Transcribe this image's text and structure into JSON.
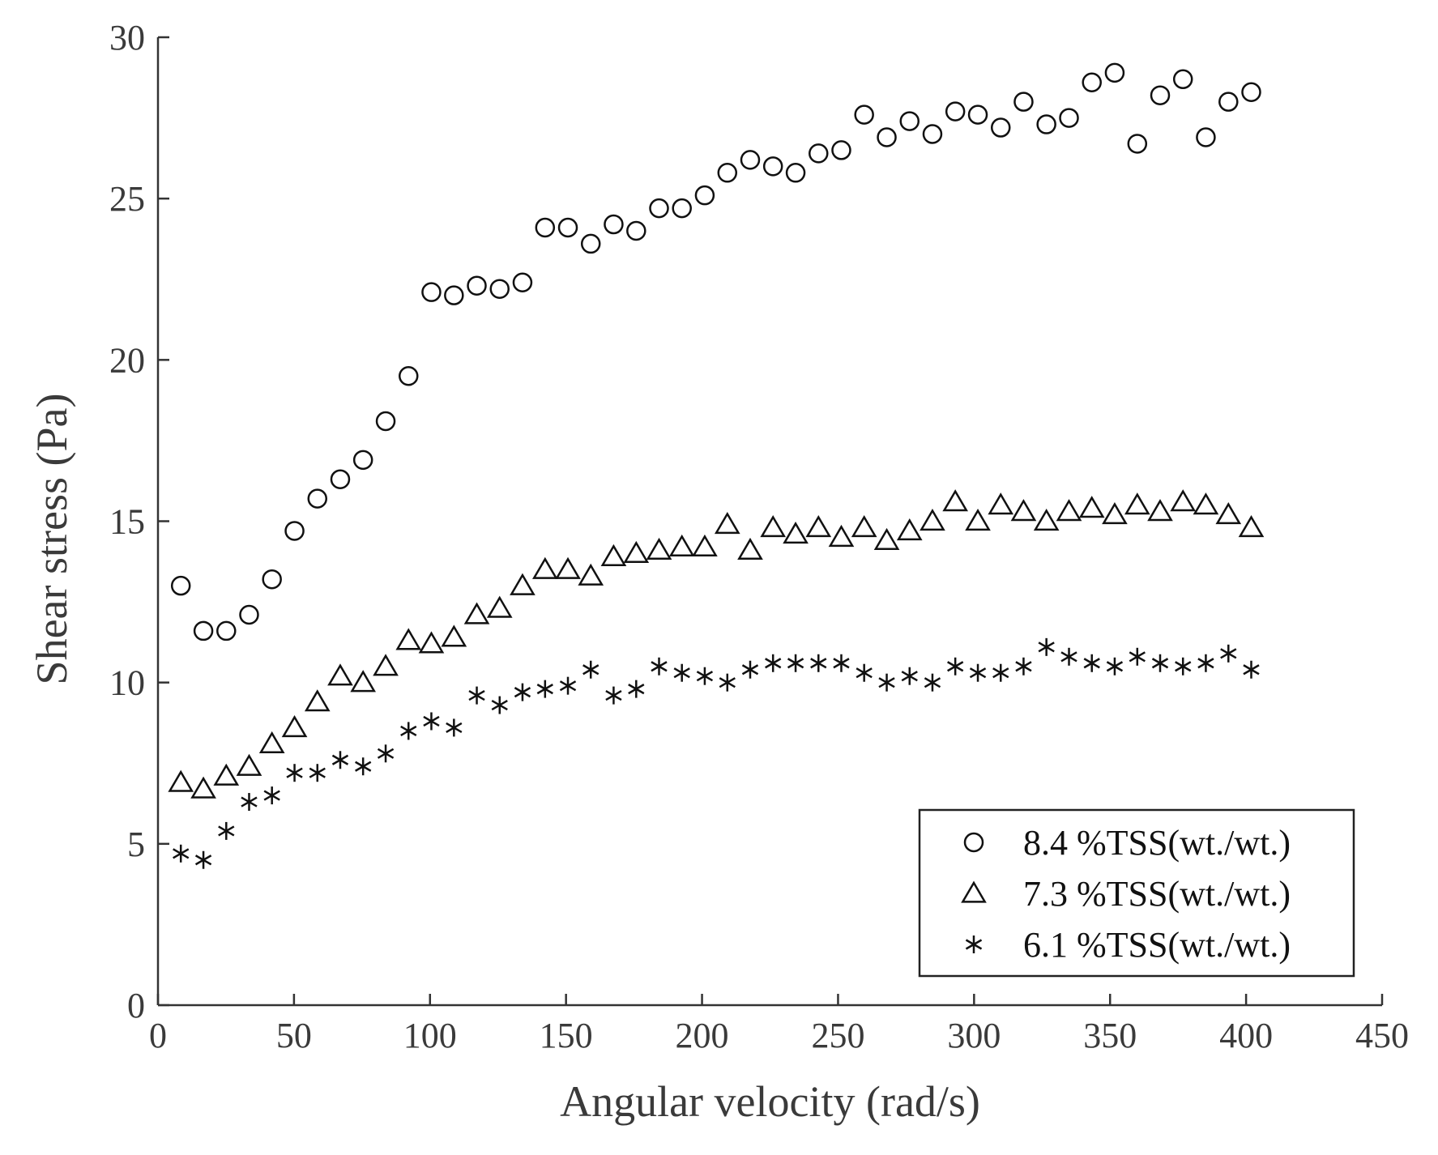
{
  "chart_data": {
    "type": "scatter",
    "title": "",
    "xlabel": "Angular velocity (rad/s)",
    "ylabel": "Shear stress (Pa)",
    "xlim": [
      0,
      450
    ],
    "ylim": [
      0,
      30
    ],
    "xticks": [
      0,
      50,
      100,
      150,
      200,
      250,
      300,
      350,
      400,
      450
    ],
    "yticks": [
      0,
      5,
      10,
      15,
      20,
      25,
      30
    ],
    "grid": false,
    "legend_position": "bottom-right",
    "series": [
      {
        "name": "8.4 %TSS(wt./wt.)",
        "marker": "circle",
        "x": [
          8.4,
          16.7,
          25.1,
          33.5,
          41.9,
          50.2,
          58.6,
          67.0,
          75.4,
          83.7,
          92.1,
          100.5,
          108.8,
          117.2,
          125.6,
          134.0,
          142.3,
          150.7,
          159.1,
          167.5,
          175.8,
          184.2,
          192.6,
          201.0,
          209.3,
          217.7,
          226.1,
          234.4,
          242.8,
          251.2,
          259.6,
          267.9,
          276.3,
          284.7,
          293.1,
          301.4,
          309.8,
          318.2,
          326.6,
          334.9,
          343.3,
          351.7,
          360.0,
          368.4,
          376.8,
          385.2,
          393.5,
          401.9
        ],
        "y": [
          13.0,
          11.6,
          11.6,
          12.1,
          13.2,
          14.7,
          15.7,
          16.3,
          16.9,
          18.1,
          19.5,
          22.1,
          22.0,
          22.3,
          22.2,
          22.4,
          24.1,
          24.1,
          23.6,
          24.2,
          24.0,
          24.7,
          24.7,
          25.1,
          25.8,
          26.2,
          26.0,
          25.8,
          26.4,
          26.5,
          27.6,
          26.9,
          27.4,
          27.0,
          27.7,
          27.6,
          27.2,
          28.0,
          27.3,
          27.5,
          28.6,
          28.9,
          26.7,
          28.2,
          28.7,
          26.9,
          28.0,
          28.3
        ]
      },
      {
        "name": "7.3 %TSS(wt./wt.)",
        "marker": "triangle",
        "x": [
          8.4,
          16.7,
          25.1,
          33.5,
          41.9,
          50.2,
          58.6,
          67.0,
          75.4,
          83.7,
          92.1,
          100.5,
          108.8,
          117.2,
          125.6,
          134.0,
          142.3,
          150.7,
          159.1,
          167.5,
          175.8,
          184.2,
          192.6,
          201.0,
          209.3,
          217.7,
          226.1,
          234.4,
          242.8,
          251.2,
          259.6,
          267.9,
          276.3,
          284.7,
          293.1,
          301.4,
          309.8,
          318.2,
          326.6,
          334.9,
          343.3,
          351.7,
          360.0,
          368.4,
          376.8,
          385.2,
          393.5,
          401.9
        ],
        "y": [
          6.9,
          6.7,
          7.1,
          7.4,
          8.1,
          8.6,
          9.4,
          10.2,
          10.0,
          10.5,
          11.3,
          11.2,
          11.4,
          12.1,
          12.3,
          13.0,
          13.5,
          13.5,
          13.3,
          13.9,
          14.0,
          14.1,
          14.2,
          14.2,
          14.9,
          14.1,
          14.8,
          14.6,
          14.8,
          14.5,
          14.8,
          14.4,
          14.7,
          15.0,
          15.6,
          15.0,
          15.5,
          15.3,
          15.0,
          15.3,
          15.4,
          15.2,
          15.5,
          15.3,
          15.6,
          15.5,
          15.2,
          14.8
        ]
      },
      {
        "name": "6.1 %TSS(wt./wt.)",
        "marker": "asterisk",
        "x": [
          8.4,
          16.7,
          25.1,
          33.5,
          41.9,
          50.2,
          58.6,
          67.0,
          75.4,
          83.7,
          92.1,
          100.5,
          108.8,
          117.2,
          125.6,
          134.0,
          142.3,
          150.7,
          159.1,
          167.5,
          175.8,
          184.2,
          192.6,
          201.0,
          209.3,
          217.7,
          226.1,
          234.4,
          242.8,
          251.2,
          259.6,
          267.9,
          276.3,
          284.7,
          293.1,
          301.4,
          309.8,
          318.2,
          326.6,
          334.9,
          343.3,
          351.7,
          360.0,
          368.4,
          376.8,
          385.2,
          393.5,
          401.9
        ],
        "y": [
          4.7,
          4.5,
          5.4,
          6.3,
          6.5,
          7.2,
          7.2,
          7.6,
          7.4,
          7.8,
          8.5,
          8.8,
          8.6,
          9.6,
          9.3,
          9.7,
          9.8,
          9.9,
          10.4,
          9.6,
          9.8,
          10.5,
          10.3,
          10.2,
          10.0,
          10.4,
          10.6,
          10.6,
          10.6,
          10.6,
          10.3,
          10.0,
          10.2,
          10.0,
          10.5,
          10.3,
          10.3,
          10.5,
          11.1,
          10.8,
          10.6,
          10.5,
          10.8,
          10.6,
          10.5,
          10.6,
          10.9,
          10.4
        ]
      }
    ]
  }
}
